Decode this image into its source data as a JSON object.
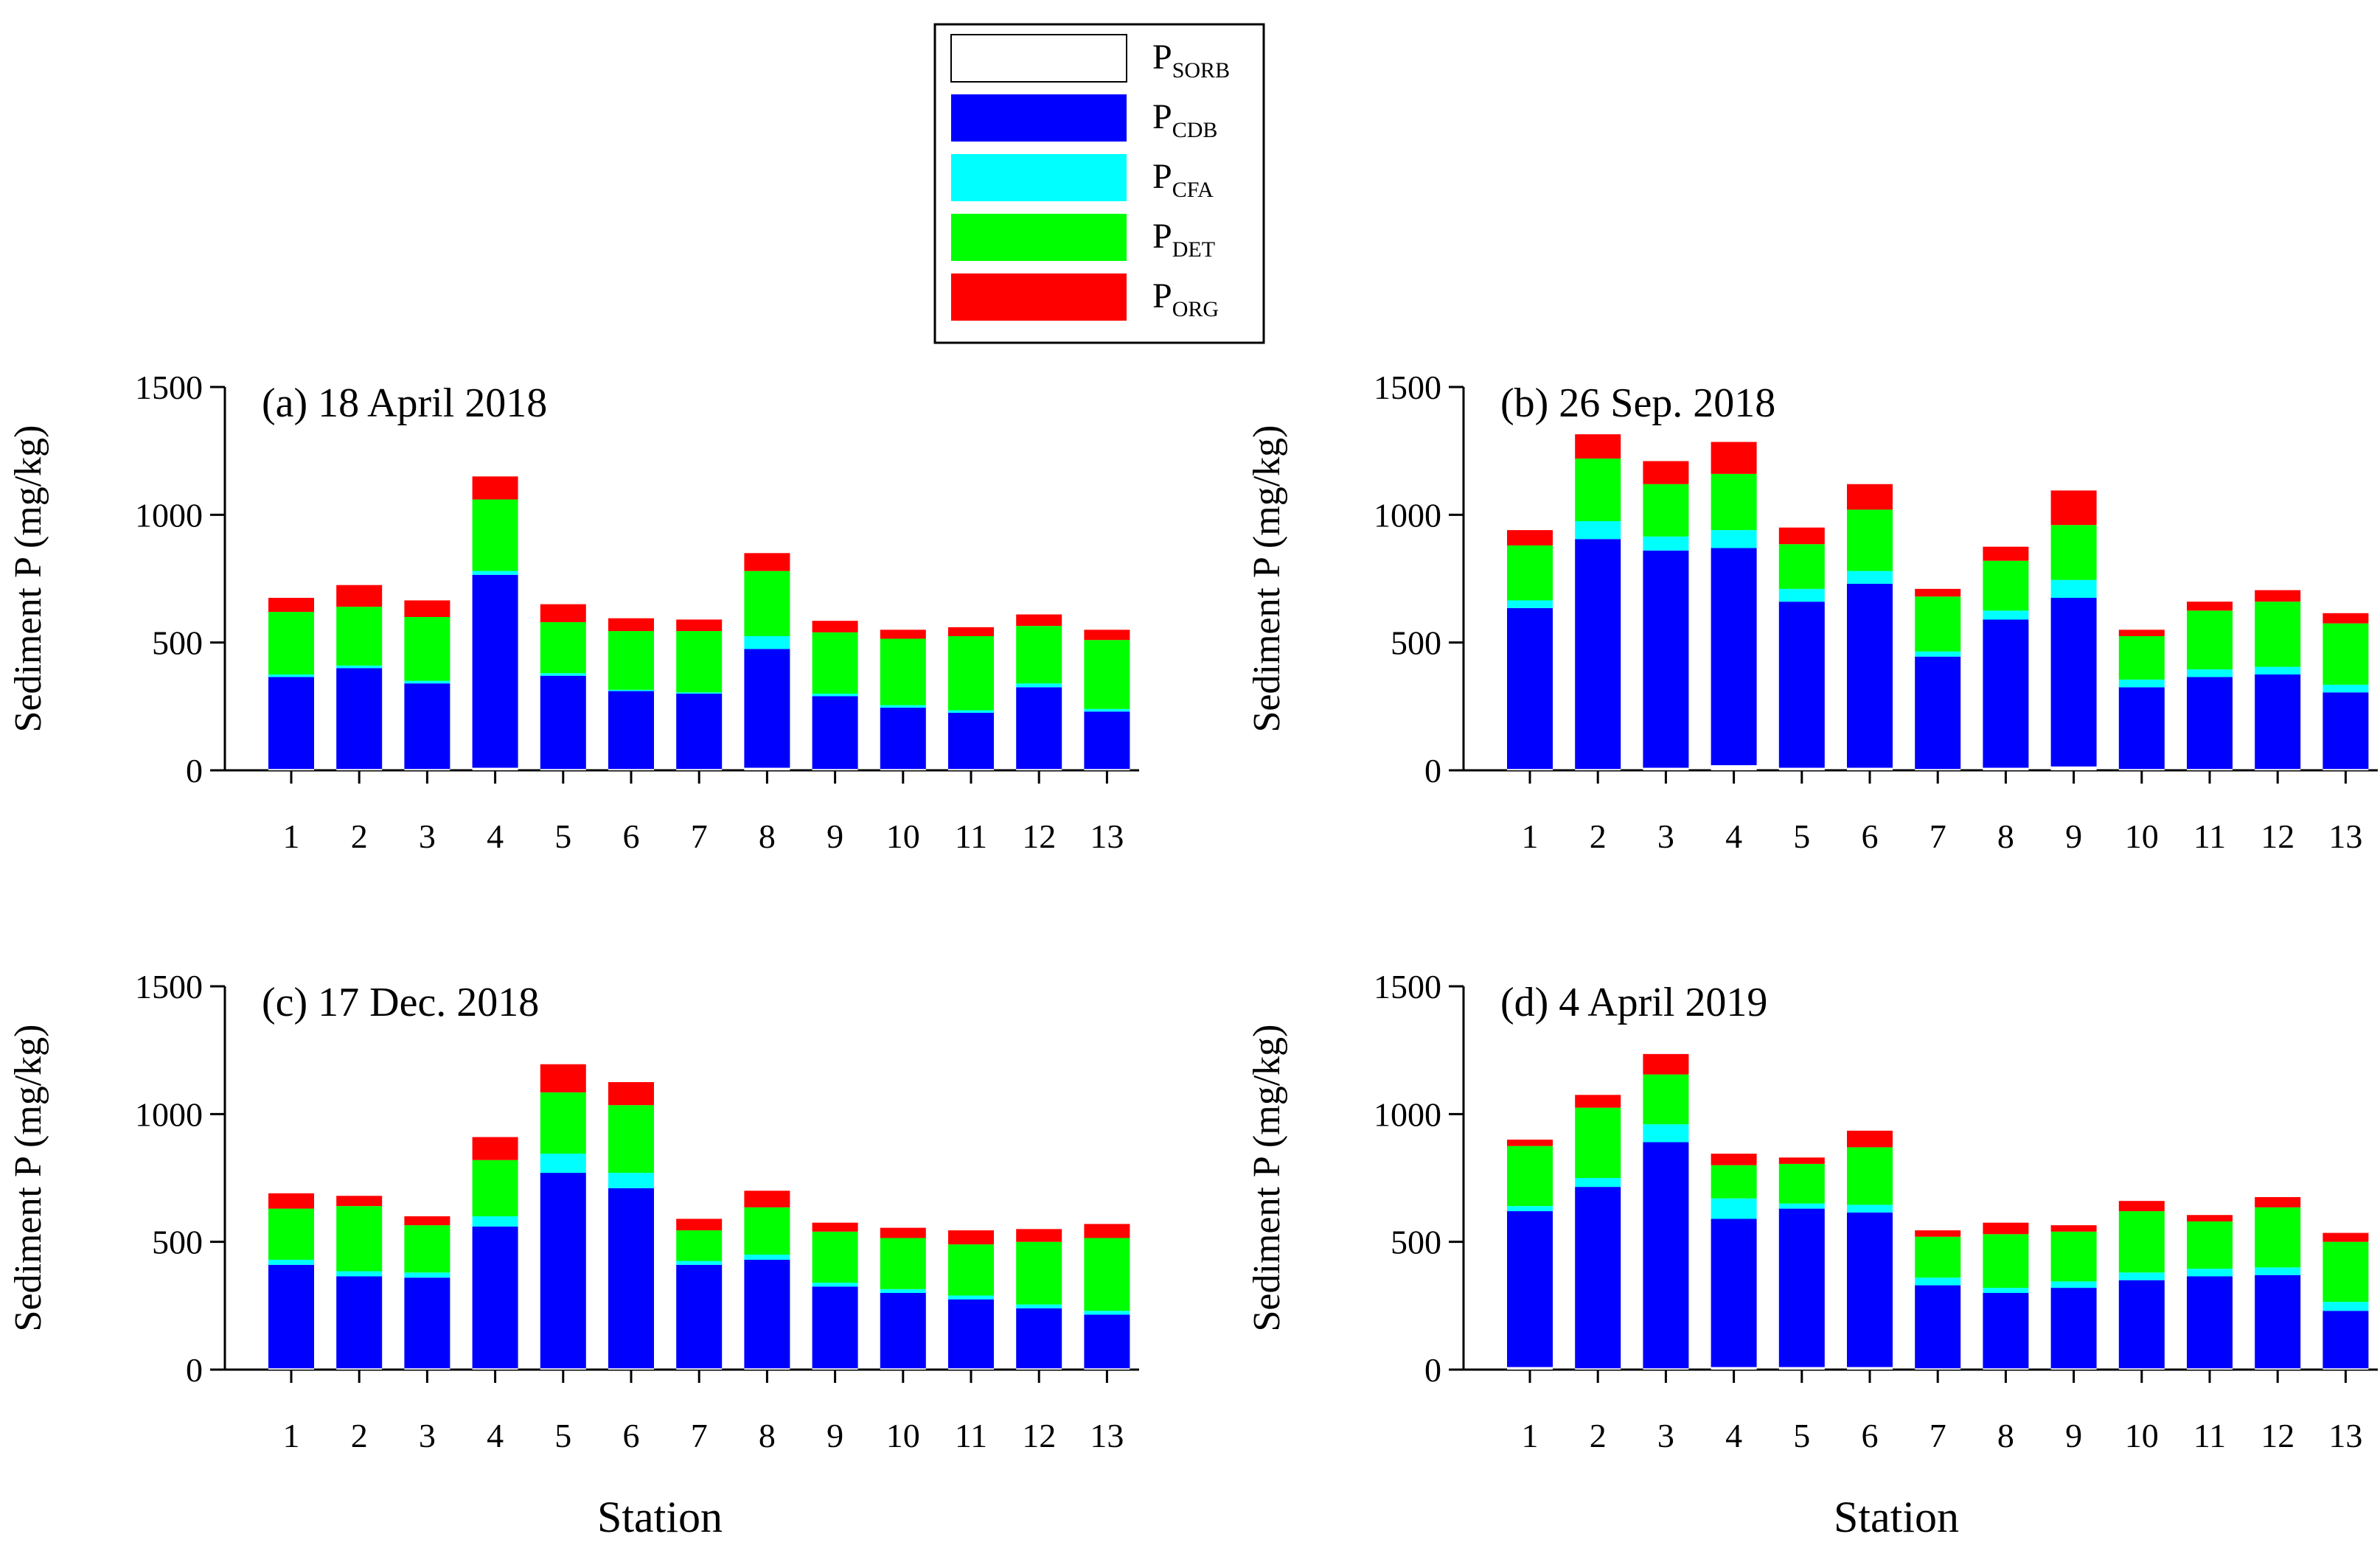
{
  "figure": {
    "xlabel": "Station",
    "ylabel": "Sediment P (mg/kg)"
  },
  "legend": {
    "placement": "top-center",
    "entries": [
      {
        "key": "sorb",
        "base": "P",
        "sub": "SORB",
        "color": "#ffffff"
      },
      {
        "key": "cdb",
        "base": "P",
        "sub": "CDB",
        "color": "#0000ff"
      },
      {
        "key": "cfa",
        "base": "P",
        "sub": "CFA",
        "color": "#00ffff"
      },
      {
        "key": "det",
        "base": "P",
        "sub": "DET",
        "color": "#00ff00"
      },
      {
        "key": "org",
        "base": "P",
        "sub": "ORG",
        "color": "#ff0000"
      }
    ]
  },
  "chart_data": [
    {
      "type": "bar",
      "stacked": true,
      "title": "(a) 18 April 2018",
      "xlabel": "Station",
      "ylabel": "Sediment P (mg/kg)",
      "ylim": [
        0,
        1500
      ],
      "yticks": [
        0,
        500,
        1000,
        1500
      ],
      "categories": [
        "1",
        "2",
        "3",
        "4",
        "5",
        "6",
        "7",
        "8",
        "9",
        "10",
        "11",
        "12",
        "13"
      ],
      "series": [
        {
          "name": "PSORB",
          "values": [
            5,
            5,
            5,
            10,
            5,
            5,
            5,
            10,
            5,
            5,
            5,
            5,
            5
          ]
        },
        {
          "name": "PCDB",
          "values": [
            360,
            395,
            335,
            755,
            365,
            305,
            295,
            465,
            285,
            240,
            220,
            320,
            225
          ]
        },
        {
          "name": "PCFA",
          "values": [
            10,
            10,
            10,
            15,
            10,
            5,
            5,
            50,
            10,
            10,
            10,
            15,
            10
          ]
        },
        {
          "name": "PDET",
          "values": [
            245,
            230,
            250,
            280,
            200,
            230,
            240,
            255,
            240,
            260,
            290,
            225,
            270
          ]
        },
        {
          "name": "PORG",
          "values": [
            55,
            85,
            65,
            90,
            70,
            50,
            45,
            70,
            45,
            35,
            35,
            45,
            40
          ]
        }
      ]
    },
    {
      "type": "bar",
      "stacked": true,
      "title": "(b) 26 Sep. 2018",
      "xlabel": "Station",
      "ylabel": "Sediment P (mg/kg)",
      "ylim": [
        0,
        1500
      ],
      "yticks": [
        0,
        500,
        1000,
        1500
      ],
      "categories": [
        "1",
        "2",
        "3",
        "4",
        "5",
        "6",
        "7",
        "8",
        "9",
        "10",
        "11",
        "12",
        "13"
      ],
      "series": [
        {
          "name": "PSORB",
          "values": [
            5,
            5,
            10,
            20,
            10,
            10,
            5,
            10,
            15,
            5,
            5,
            5,
            5
          ]
        },
        {
          "name": "PCDB",
          "values": [
            630,
            900,
            850,
            850,
            650,
            720,
            440,
            580,
            660,
            320,
            360,
            370,
            300
          ]
        },
        {
          "name": "PCFA",
          "values": [
            30,
            70,
            55,
            70,
            50,
            50,
            20,
            35,
            70,
            30,
            30,
            30,
            30
          ]
        },
        {
          "name": "PDET",
          "values": [
            215,
            245,
            205,
            220,
            175,
            240,
            215,
            195,
            215,
            170,
            230,
            255,
            240
          ]
        },
        {
          "name": "PORG",
          "values": [
            60,
            95,
            90,
            125,
            65,
            100,
            30,
            55,
            135,
            25,
            35,
            45,
            40
          ]
        }
      ]
    },
    {
      "type": "bar",
      "stacked": true,
      "title": "(c) 17 Dec. 2018",
      "xlabel": "Station",
      "ylabel": "Sediment P (mg/kg)",
      "ylim": [
        0,
        1500
      ],
      "yticks": [
        0,
        500,
        1000,
        1500
      ],
      "categories": [
        "1",
        "2",
        "3",
        "4",
        "5",
        "6",
        "7",
        "8",
        "9",
        "10",
        "11",
        "12",
        "13"
      ],
      "series": [
        {
          "name": "PSORB",
          "values": [
            5,
            5,
            5,
            5,
            5,
            5,
            5,
            5,
            5,
            5,
            5,
            5,
            5
          ]
        },
        {
          "name": "PCDB",
          "values": [
            405,
            360,
            355,
            555,
            765,
            705,
            405,
            425,
            320,
            295,
            270,
            235,
            210
          ]
        },
        {
          "name": "PCFA",
          "values": [
            20,
            20,
            20,
            40,
            75,
            60,
            15,
            20,
            15,
            15,
            15,
            15,
            15
          ]
        },
        {
          "name": "PDET",
          "values": [
            200,
            255,
            185,
            220,
            240,
            265,
            120,
            185,
            200,
            200,
            200,
            245,
            285
          ]
        },
        {
          "name": "PORG",
          "values": [
            60,
            40,
            35,
            90,
            110,
            90,
            45,
            65,
            35,
            40,
            55,
            50,
            55
          ]
        }
      ]
    },
    {
      "type": "bar",
      "stacked": true,
      "title": "(d) 4 April 2019",
      "xlabel": "Station",
      "ylabel": "Sediment P (mg/kg)",
      "ylim": [
        0,
        1500
      ],
      "yticks": [
        0,
        500,
        1000,
        1500
      ],
      "categories": [
        "1",
        "2",
        "3",
        "4",
        "5",
        "6",
        "7",
        "8",
        "9",
        "10",
        "11",
        "12",
        "13"
      ],
      "series": [
        {
          "name": "PSORB",
          "values": [
            10,
            5,
            5,
            10,
            10,
            10,
            5,
            5,
            5,
            5,
            5,
            5,
            5
          ]
        },
        {
          "name": "PCDB",
          "values": [
            610,
            710,
            885,
            580,
            620,
            605,
            325,
            295,
            315,
            345,
            360,
            365,
            225
          ]
        },
        {
          "name": "PCFA",
          "values": [
            20,
            35,
            70,
            80,
            20,
            30,
            30,
            20,
            25,
            30,
            30,
            30,
            35
          ]
        },
        {
          "name": "PDET",
          "values": [
            235,
            275,
            195,
            130,
            155,
            225,
            160,
            210,
            195,
            240,
            185,
            235,
            235
          ]
        },
        {
          "name": "PORG",
          "values": [
            25,
            50,
            80,
            45,
            25,
            65,
            25,
            45,
            25,
            40,
            25,
            40,
            35
          ]
        }
      ]
    }
  ]
}
